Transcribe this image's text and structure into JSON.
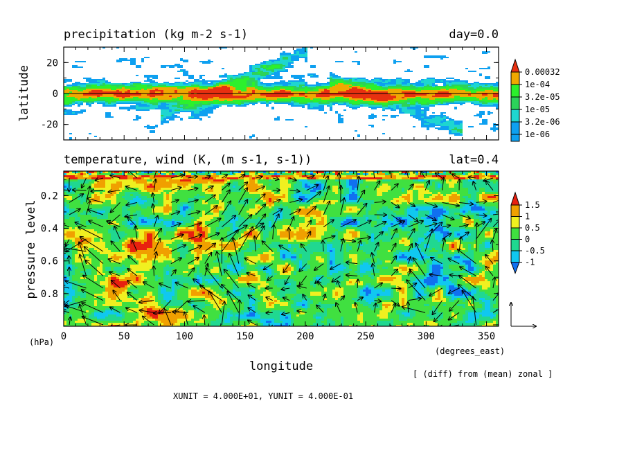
{
  "chart_data": [
    {
      "type": "heatmap",
      "title": "precipitation (kg m-2 s-1)",
      "title_right": "day=0.0",
      "ylabel": "latitude",
      "xlim": [
        0,
        360
      ],
      "ylim": [
        -30,
        30
      ],
      "y_ticks": [
        {
          "v": 20,
          "label": "20"
        },
        {
          "v": 0,
          "label": "0"
        },
        {
          "v": -20,
          "label": "-20"
        }
      ],
      "colorbar": {
        "colors": [
          "#0ea0f0",
          "#1ed6d0",
          "#2cd25a",
          "#2cf02c",
          "#f0a800",
          "#e83010"
        ],
        "labels": [
          "1e-06",
          "3.2e-06",
          "1e-05",
          "3.2e-05",
          "1e-04",
          "0.00032"
        ]
      }
    },
    {
      "type": "heatmap",
      "title": "temperature, wind (K, (m s-1, s-1))",
      "title_right": "lat=0.4",
      "ylabel": "pressure level",
      "yunit": "(hPa)",
      "xlabel": "longitude",
      "xunit": "(degrees_east)",
      "xlim": [
        0,
        360
      ],
      "ylim": [
        1.0,
        0.05
      ],
      "x_ticks": [
        0,
        50,
        100,
        150,
        200,
        250,
        300,
        350
      ],
      "y_ticks": [
        {
          "v": 0.2,
          "label": "0.2"
        },
        {
          "v": 0.4,
          "label": "0.4"
        },
        {
          "v": 0.6,
          "label": "0.6"
        },
        {
          "v": 0.8,
          "label": "0.8"
        }
      ],
      "colorbar": {
        "colors": [
          "#1070f0",
          "#10c8f0",
          "#20d890",
          "#40e040",
          "#f0f020",
          "#f0a000",
          "#e82010"
        ],
        "labels": [
          "-1",
          "-0.5",
          "0",
          "0.5",
          "1",
          "1.5"
        ]
      },
      "vectors": "wind",
      "note": "[ (diff) from (mean) zonal ]",
      "units_line": "XUNIT = 4.000E+01, YUNIT = 4.000E-01"
    }
  ]
}
